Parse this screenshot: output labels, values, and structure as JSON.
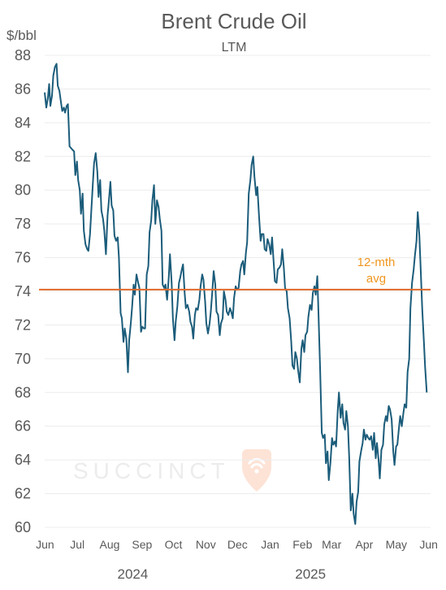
{
  "chart_data": {
    "type": "line",
    "title": "Brent Crude Oil",
    "subtitle": "LTM",
    "ylabel": "$/bbl",
    "ylim": [
      60,
      88
    ],
    "yticks": [
      60,
      62,
      64,
      66,
      68,
      70,
      72,
      74,
      76,
      78,
      80,
      82,
      84,
      86,
      88
    ],
    "xlim": [
      0,
      12.05
    ],
    "month_ticks": [
      "Jun",
      "Jul",
      "Aug",
      "Sep",
      "Oct",
      "Nov",
      "Dec",
      "Jan",
      "Feb",
      "Mar",
      "Apr",
      "May",
      "Jun"
    ],
    "years": [
      {
        "label": "2024",
        "at_month": 2.75
      },
      {
        "label": "2025",
        "at_month": 8.3
      }
    ],
    "average": {
      "value": 74.1,
      "label_line1": "12-mth",
      "label_line2": "avg",
      "color": "#e0682a",
      "label_color": "#f0961e"
    },
    "series": [
      {
        "color": "#1b5c7a",
        "points": [
          [
            0.0,
            85.8
          ],
          [
            0.04,
            84.9
          ],
          [
            0.08,
            85.5
          ],
          [
            0.11,
            86.3
          ],
          [
            0.14,
            85.0
          ],
          [
            0.18,
            85.6
          ],
          [
            0.21,
            86.8
          ],
          [
            0.25,
            87.3
          ],
          [
            0.29,
            87.5
          ],
          [
            0.32,
            86.2
          ],
          [
            0.36,
            85.9
          ],
          [
            0.4,
            85.2
          ],
          [
            0.43,
            84.7
          ],
          [
            0.47,
            84.9
          ],
          [
            0.5,
            84.6
          ],
          [
            0.54,
            85.0
          ],
          [
            0.57,
            85.1
          ],
          [
            0.61,
            82.6
          ],
          [
            0.68,
            82.4
          ],
          [
            0.72,
            82.3
          ],
          [
            0.75,
            80.9
          ],
          [
            0.79,
            81.7
          ],
          [
            0.82,
            80.6
          ],
          [
            0.86,
            80.0
          ],
          [
            0.89,
            78.6
          ],
          [
            0.93,
            79.8
          ],
          [
            0.96,
            77.6
          ],
          [
            1.0,
            76.8
          ],
          [
            1.04,
            76.5
          ],
          [
            1.07,
            76.4
          ],
          [
            1.11,
            77.4
          ],
          [
            1.14,
            78.7
          ],
          [
            1.18,
            80.4
          ],
          [
            1.21,
            81.6
          ],
          [
            1.25,
            82.2
          ],
          [
            1.29,
            81.1
          ],
          [
            1.32,
            79.6
          ],
          [
            1.36,
            80.6
          ],
          [
            1.39,
            78.8
          ],
          [
            1.43,
            78.3
          ],
          [
            1.46,
            77.6
          ],
          [
            1.5,
            76.2
          ],
          [
            1.54,
            78.5
          ],
          [
            1.57,
            79.3
          ],
          [
            1.61,
            80.5
          ],
          [
            1.64,
            79.1
          ],
          [
            1.68,
            78.8
          ],
          [
            1.71,
            77.3
          ],
          [
            1.75,
            77.0
          ],
          [
            1.79,
            77.2
          ],
          [
            1.82,
            76.0
          ],
          [
            1.86,
            72.7
          ],
          [
            1.89,
            72.4
          ],
          [
            1.93,
            71.0
          ],
          [
            1.96,
            71.8
          ],
          [
            2.0,
            71.2
          ],
          [
            2.04,
            69.2
          ],
          [
            2.07,
            71.1
          ],
          [
            2.11,
            72.1
          ],
          [
            2.14,
            73.0
          ],
          [
            2.18,
            74.4
          ],
          [
            2.21,
            73.8
          ],
          [
            2.25,
            75.0
          ],
          [
            2.29,
            74.5
          ],
          [
            2.32,
            74.2
          ],
          [
            2.36,
            71.6
          ],
          [
            2.39,
            71.9
          ],
          [
            2.43,
            71.8
          ],
          [
            2.46,
            71.8
          ],
          [
            2.5,
            75.0
          ],
          [
            2.54,
            75.5
          ],
          [
            2.57,
            77.5
          ],
          [
            2.61,
            78.2
          ],
          [
            2.64,
            79.4
          ],
          [
            2.68,
            80.3
          ],
          [
            2.71,
            78.0
          ],
          [
            2.75,
            79.4
          ],
          [
            2.79,
            79.0
          ],
          [
            2.82,
            78.3
          ],
          [
            2.86,
            77.6
          ],
          [
            2.89,
            74.4
          ],
          [
            2.93,
            74.2
          ],
          [
            2.96,
            74.4
          ],
          [
            3.0,
            73.5
          ],
          [
            3.04,
            74.8
          ],
          [
            3.07,
            76.2
          ],
          [
            3.11,
            74.5
          ],
          [
            3.14,
            72.4
          ],
          [
            3.18,
            71.1
          ],
          [
            3.21,
            72.2
          ],
          [
            3.25,
            73.1
          ],
          [
            3.29,
            74.5
          ],
          [
            3.32,
            74.8
          ],
          [
            3.36,
            75.3
          ],
          [
            3.39,
            75.6
          ],
          [
            3.43,
            73.9
          ],
          [
            3.46,
            73.0
          ],
          [
            3.5,
            73.2
          ],
          [
            3.54,
            72.8
          ],
          [
            3.57,
            72.2
          ],
          [
            3.61,
            71.9
          ],
          [
            3.64,
            71.2
          ],
          [
            3.68,
            72.6
          ],
          [
            3.71,
            73.0
          ],
          [
            3.75,
            72.9
          ],
          [
            3.79,
            73.5
          ],
          [
            3.82,
            74.3
          ],
          [
            3.86,
            75.0
          ],
          [
            3.89,
            74.7
          ],
          [
            3.93,
            73.4
          ],
          [
            3.96,
            72.1
          ],
          [
            4.0,
            71.5
          ],
          [
            4.04,
            72.1
          ],
          [
            4.07,
            72.8
          ],
          [
            4.11,
            74.1
          ],
          [
            4.14,
            75.2
          ],
          [
            4.18,
            74.4
          ],
          [
            4.21,
            72.8
          ],
          [
            4.25,
            72.6
          ],
          [
            4.29,
            71.4
          ],
          [
            4.32,
            72.1
          ],
          [
            4.36,
            72.4
          ],
          [
            4.39,
            74.0
          ],
          [
            4.43,
            73.5
          ],
          [
            4.46,
            72.8
          ],
          [
            4.5,
            72.6
          ],
          [
            4.54,
            73.0
          ],
          [
            4.57,
            72.8
          ],
          [
            4.61,
            72.4
          ],
          [
            4.64,
            73.6
          ],
          [
            4.68,
            74.3
          ],
          [
            4.71,
            74.1
          ],
          [
            4.75,
            74.2
          ],
          [
            4.79,
            75.2
          ],
          [
            4.82,
            75.6
          ],
          [
            4.86,
            75.8
          ],
          [
            4.89,
            75.0
          ],
          [
            4.93,
            76.3
          ],
          [
            4.96,
            76.9
          ],
          [
            5.0,
            79.8
          ],
          [
            5.04,
            80.6
          ],
          [
            5.07,
            81.5
          ],
          [
            5.11,
            82.0
          ],
          [
            5.14,
            80.8
          ],
          [
            5.18,
            79.7
          ],
          [
            5.21,
            80.2
          ],
          [
            5.25,
            78.5
          ],
          [
            5.29,
            77.0
          ],
          [
            5.32,
            77.4
          ],
          [
            5.36,
            77.4
          ],
          [
            5.39,
            76.5
          ],
          [
            5.43,
            76.4
          ],
          [
            5.46,
            77.1
          ],
          [
            5.5,
            76.8
          ],
          [
            5.54,
            76.2
          ],
          [
            5.57,
            77.2
          ],
          [
            5.61,
            75.7
          ],
          [
            5.64,
            74.6
          ],
          [
            5.68,
            74.5
          ],
          [
            5.71,
            75.3
          ],
          [
            5.75,
            75.4
          ],
          [
            5.79,
            75.6
          ],
          [
            5.82,
            76.5
          ],
          [
            5.86,
            75.4
          ],
          [
            5.89,
            74.2
          ],
          [
            5.93,
            74.0
          ],
          [
            5.96,
            73.0
          ],
          [
            6.0,
            72.4
          ],
          [
            6.04,
            71.0
          ],
          [
            6.07,
            69.6
          ],
          [
            6.11,
            69.4
          ],
          [
            6.14,
            70.4
          ],
          [
            6.18,
            70.0
          ],
          [
            6.21,
            69.3
          ],
          [
            6.25,
            68.6
          ],
          [
            6.29,
            70.6
          ],
          [
            6.32,
            71.1
          ],
          [
            6.36,
            70.4
          ],
          [
            6.39,
            71.4
          ],
          [
            6.43,
            71.6
          ],
          [
            6.46,
            72.5
          ],
          [
            6.5,
            73.2
          ],
          [
            6.54,
            72.9
          ],
          [
            6.57,
            73.9
          ],
          [
            6.61,
            74.3
          ],
          [
            6.64,
            73.8
          ],
          [
            6.68,
            74.9
          ],
          [
            6.71,
            72.6
          ],
          [
            6.75,
            69.3
          ],
          [
            6.79,
            65.6
          ],
          [
            6.82,
            65.3
          ],
          [
            6.86,
            65.5
          ],
          [
            6.89,
            63.8
          ],
          [
            6.93,
            64.5
          ],
          [
            6.96,
            62.8
          ],
          [
            7.0,
            63.8
          ],
          [
            7.04,
            65.3
          ],
          [
            7.07,
            64.9
          ],
          [
            7.11,
            65.1
          ],
          [
            7.14,
            64.8
          ],
          [
            7.18,
            66.9
          ],
          [
            7.21,
            68.0
          ],
          [
            7.25,
            66.5
          ],
          [
            7.29,
            67.3
          ],
          [
            7.32,
            66.2
          ],
          [
            7.36,
            65.8
          ],
          [
            7.39,
            66.9
          ],
          [
            7.43,
            66.0
          ],
          [
            7.46,
            64.2
          ],
          [
            7.5,
            61.0
          ],
          [
            7.54,
            62.0
          ],
          [
            7.57,
            60.8
          ],
          [
            7.61,
            60.2
          ],
          [
            7.64,
            61.5
          ],
          [
            7.68,
            62.1
          ],
          [
            7.71,
            63.9
          ],
          [
            7.75,
            64.5
          ],
          [
            7.79,
            65.0
          ],
          [
            7.82,
            65.8
          ],
          [
            7.86,
            65.2
          ],
          [
            7.89,
            65.5
          ],
          [
            7.93,
            65.3
          ],
          [
            7.96,
            65.2
          ],
          [
            8.0,
            65.4
          ],
          [
            8.04,
            64.6
          ],
          [
            8.07,
            65.6
          ],
          [
            8.11,
            64.1
          ],
          [
            8.14,
            65.0
          ],
          [
            8.18,
            64.0
          ],
          [
            8.21,
            62.9
          ],
          [
            8.25,
            64.6
          ],
          [
            8.29,
            64.9
          ],
          [
            8.32,
            66.1
          ],
          [
            8.36,
            66.6
          ],
          [
            8.39,
            66.3
          ],
          [
            8.43,
            67.2
          ],
          [
            8.46,
            67.0
          ],
          [
            8.5,
            66.4
          ],
          [
            8.54,
            64.5
          ],
          [
            8.57,
            63.7
          ],
          [
            8.61,
            64.8
          ],
          [
            8.64,
            64.9
          ],
          [
            8.68,
            65.9
          ],
          [
            8.71,
            66.6
          ],
          [
            8.75,
            66.0
          ],
          [
            8.79,
            66.8
          ],
          [
            8.82,
            67.3
          ],
          [
            8.86,
            67.1
          ],
          [
            8.89,
            69.2
          ],
          [
            8.93,
            70.0
          ],
          [
            8.96,
            73.0
          ],
          [
            9.0,
            74.5
          ],
          [
            9.04,
            75.3
          ],
          [
            9.07,
            76.1
          ],
          [
            9.11,
            77.0
          ],
          [
            9.14,
            78.7
          ],
          [
            9.18,
            77.3
          ],
          [
            9.21,
            75.5
          ],
          [
            9.25,
            73.0
          ],
          [
            9.29,
            71.0
          ],
          [
            9.32,
            69.5
          ],
          [
            9.36,
            68.0
          ]
        ]
      }
    ]
  },
  "watermark": {
    "text": "SUCCINCT",
    "badge_color": "#fbd7c6"
  }
}
